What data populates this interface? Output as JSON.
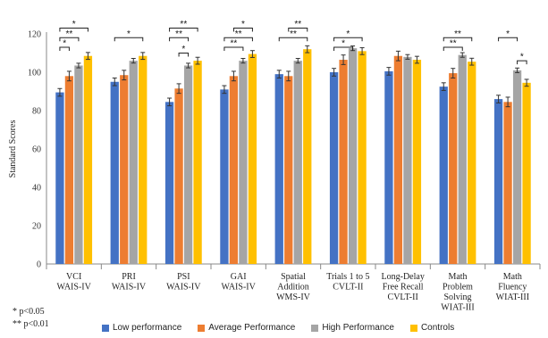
{
  "chart_data": {
    "type": "bar",
    "ylabel": "Standard Scores",
    "ylim": [
      0,
      120
    ],
    "yticks": [
      0,
      20,
      40,
      60,
      80,
      100,
      120
    ],
    "grid": false,
    "legend_position": "bottom",
    "categories": [
      [
        "VCI",
        "WAIS-IV"
      ],
      [
        "PRI",
        "WAIS-IV"
      ],
      [
        "PSI",
        "WAIS-IV"
      ],
      [
        "GAI",
        "WAIS-IV"
      ],
      [
        "Spatial",
        "Addition",
        "WMS-IV"
      ],
      [
        "Trials 1 to 5",
        "CVLT-II"
      ],
      [
        "Long-Delay",
        "Free Recall",
        "CVLT-II"
      ],
      [
        "Math",
        "Problem",
        "Solving",
        "WIAT-III"
      ],
      [
        "Math",
        "Fluency",
        "WIAT-III"
      ]
    ],
    "series": [
      {
        "name": "Low performance",
        "color": "#4472C4",
        "values": [
          89.5,
          95,
          84.5,
          91,
          99,
          100,
          100.5,
          92.5,
          86
        ],
        "errors": [
          2,
          2,
          2,
          2,
          2,
          2,
          2,
          2,
          2
        ]
      },
      {
        "name": "Average Performance",
        "color": "#ED7D31",
        "values": [
          98,
          98.5,
          91.5,
          98,
          98,
          106.5,
          108.5,
          99.5,
          84.5
        ],
        "errors": [
          2.5,
          2.5,
          2.5,
          2.5,
          2.5,
          2.5,
          2.5,
          2.5,
          2.5
        ]
      },
      {
        "name": "High Performance",
        "color": "#A5A5A5",
        "values": [
          103.5,
          106,
          103.5,
          106,
          106,
          112.5,
          108,
          109,
          101
        ],
        "errors": [
          1.2,
          1.2,
          1.2,
          1.2,
          1.2,
          1.2,
          1.2,
          1.2,
          1.2
        ]
      },
      {
        "name": "Controls",
        "color": "#FFC000",
        "values": [
          108.5,
          108.5,
          106,
          109.5,
          112,
          111,
          106.5,
          105.5,
          94.5
        ],
        "errors": [
          1.8,
          1.8,
          1.8,
          1.8,
          1.8,
          1.8,
          1.8,
          1.8,
          1.8
        ]
      }
    ],
    "significance": [
      {
        "cat": 0,
        "from": 0,
        "to": 3,
        "level": 123,
        "label": "*"
      },
      {
        "cat": 0,
        "from": 0,
        "to": 2,
        "level": 118,
        "label": "**"
      },
      {
        "cat": 0,
        "from": 0,
        "to": 1,
        "level": 113,
        "label": "*"
      },
      {
        "cat": 1,
        "from": 0,
        "to": 3,
        "level": 118,
        "label": "*"
      },
      {
        "cat": 2,
        "from": 0,
        "to": 3,
        "level": 123,
        "label": "**"
      },
      {
        "cat": 2,
        "from": 0,
        "to": 2,
        "level": 118,
        "label": "**"
      },
      {
        "cat": 2,
        "from": 1,
        "to": 2,
        "level": 110,
        "label": "*"
      },
      {
        "cat": 3,
        "from": 1,
        "to": 3,
        "level": 123,
        "label": "*"
      },
      {
        "cat": 3,
        "from": 0,
        "to": 3,
        "level": 118,
        "label": "**"
      },
      {
        "cat": 3,
        "from": 0,
        "to": 2,
        "level": 113,
        "label": "**"
      },
      {
        "cat": 4,
        "from": 1,
        "to": 3,
        "level": 123,
        "label": "**"
      },
      {
        "cat": 4,
        "from": 0,
        "to": 3,
        "level": 118,
        "label": "**"
      },
      {
        "cat": 5,
        "from": 0,
        "to": 3,
        "level": 118,
        "label": "*"
      },
      {
        "cat": 5,
        "from": 0,
        "to": 2,
        "level": 113,
        "label": "*"
      },
      {
        "cat": 7,
        "from": 0,
        "to": 3,
        "level": 118,
        "label": "**"
      },
      {
        "cat": 7,
        "from": 0,
        "to": 2,
        "level": 113,
        "label": "**"
      },
      {
        "cat": 8,
        "from": 0,
        "to": 2,
        "level": 118,
        "label": "*"
      },
      {
        "cat": 8,
        "from": 2,
        "to": 3,
        "level": 106,
        "label": "*"
      }
    ]
  },
  "notes": {
    "single_star": "*  p<0.05",
    "double_star": "** p<0.01"
  }
}
